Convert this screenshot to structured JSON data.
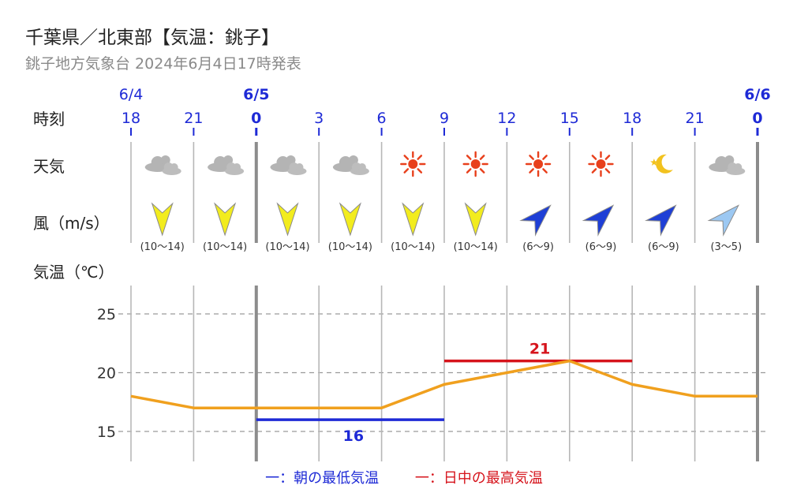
{
  "header": {
    "title": "千葉県／北東部【気温：銚子】",
    "subtitle": "銚子地方気象台 2024年6月4日17時発表"
  },
  "row_labels": {
    "time": "時刻",
    "weather": "天気",
    "wind": "風（m/s）",
    "temp": "気温（℃）"
  },
  "dates": [
    {
      "label": "6/4",
      "column": 0,
      "bold": false
    },
    {
      "label": "6/5",
      "column": 2,
      "bold": true
    },
    {
      "label": "6/6",
      "column": 10,
      "bold": true
    }
  ],
  "hours": [
    "18",
    "21",
    "0",
    "3",
    "6",
    "9",
    "12",
    "15",
    "18",
    "21",
    "0"
  ],
  "hours_bold": [
    false,
    false,
    true,
    false,
    false,
    false,
    false,
    false,
    false,
    false,
    true
  ],
  "weather": [
    "cloud-icon",
    "cloud-icon",
    "cloud-icon",
    "cloud-icon",
    "sun-icon",
    "sun-icon",
    "sun-icon",
    "sun-icon",
    "moon-star-icon",
    "cloud-icon"
  ],
  "wind": [
    {
      "range": "(10〜14)",
      "direction": "N",
      "color": "#f2ec1e"
    },
    {
      "range": "(10〜14)",
      "direction": "N",
      "color": "#f2ec1e"
    },
    {
      "range": "(10〜14)",
      "direction": "N",
      "color": "#f2ec1e"
    },
    {
      "range": "(10〜14)",
      "direction": "N",
      "color": "#f2ec1e"
    },
    {
      "range": "(10〜14)",
      "direction": "N",
      "color": "#f2ec1e"
    },
    {
      "range": "(10〜14)",
      "direction": "N",
      "color": "#f2ec1e"
    },
    {
      "range": "(6〜9)",
      "direction": "SW",
      "color": "#1e3fd6"
    },
    {
      "range": "(6〜9)",
      "direction": "SW",
      "color": "#1e3fd6"
    },
    {
      "range": "(6〜9)",
      "direction": "SW",
      "color": "#1e3fd6"
    },
    {
      "range": "(3〜5)",
      "direction": "SW",
      "color": "#9cc8f2"
    }
  ],
  "chart_data": {
    "type": "line",
    "x": [
      "6/4 18",
      "6/4 21",
      "6/5 0",
      "6/5 3",
      "6/5 6",
      "6/5 9",
      "6/5 12",
      "6/5 15",
      "6/5 18",
      "6/5 21",
      "6/6 0"
    ],
    "series": [
      {
        "values": [
          18,
          17,
          17,
          17,
          17,
          19,
          20,
          21,
          19,
          18,
          18
        ],
        "color": "#f0a01e"
      }
    ],
    "yticks": [
      15,
      20,
      25
    ],
    "ylim": [
      13.2,
      27.6
    ],
    "grid": true,
    "min_temp": {
      "value": 16,
      "label": "16",
      "from_index": 2,
      "to_index": 5,
      "color": "#1e2ad6"
    },
    "max_temp": {
      "value": 21,
      "label": "21",
      "from_index": 5,
      "to_index": 8,
      "color": "#d6141c"
    }
  },
  "legend": {
    "min": "一：朝の最低気温",
    "max": "一：日中の最高気温"
  }
}
